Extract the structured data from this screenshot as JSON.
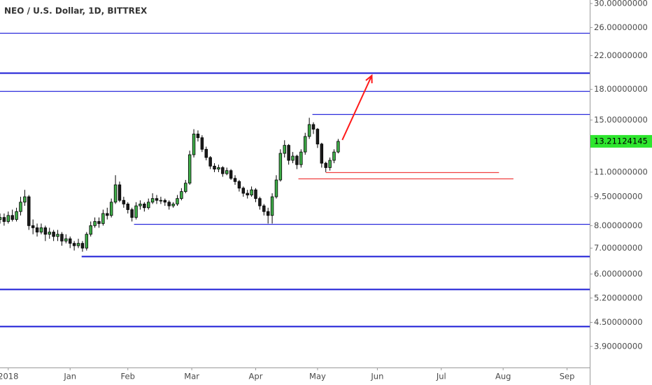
{
  "chart_data": {
    "type": "candlestick",
    "title": "NEO / U.S. Dollar, 1D, BITTREX",
    "log_scale": true,
    "grid": false,
    "up_color": "#3fae49",
    "down_color": "#1b1b1b",
    "wick_color": "#000000",
    "x": [
      -4,
      -2,
      0,
      2,
      4,
      6,
      8,
      10,
      12,
      14,
      16,
      18,
      20,
      22,
      24,
      26,
      28,
      30,
      32,
      34,
      36,
      38,
      40,
      42,
      44,
      46,
      48,
      50,
      52,
      54,
      56,
      58,
      60,
      62,
      64,
      66,
      68,
      70,
      72,
      74,
      76,
      78,
      80,
      82,
      84,
      86,
      88,
      90,
      92,
      94,
      96,
      98,
      100,
      102,
      104,
      106,
      108,
      110,
      112,
      114,
      116,
      118,
      120,
      122,
      124,
      126,
      128,
      130,
      132,
      134,
      136,
      138,
      140,
      142,
      144,
      146,
      148,
      150,
      152,
      154,
      156,
      158,
      160
    ],
    "open": [
      8.3,
      8.4,
      8.2,
      8.5,
      8.3,
      8.7,
      9.2,
      9.5,
      8.0,
      7.9,
      7.7,
      7.9,
      7.6,
      7.7,
      7.5,
      7.6,
      7.3,
      7.4,
      7.2,
      7.1,
      7.2,
      7.0,
      7.6,
      8.0,
      8.2,
      8.1,
      8.6,
      8.5,
      9.2,
      10.2,
      9.3,
      9.1,
      8.8,
      8.4,
      9.0,
      9.1,
      8.9,
      9.2,
      9.4,
      9.3,
      9.3,
      9.2,
      9.0,
      9.1,
      9.4,
      9.8,
      10.3,
      12.2,
      13.8,
      13.5,
      12.6,
      12.0,
      11.4,
      11.2,
      11.3,
      10.9,
      11.1,
      10.6,
      10.4,
      10.0,
      9.7,
      9.6,
      9.9,
      9.4,
      9.0,
      8.7,
      8.5,
      9.5,
      10.5,
      12.3,
      12.9,
      11.8,
      12.1,
      11.5,
      12.4,
      13.6,
      14.6,
      14.2,
      13.0,
      11.6,
      11.3,
      11.8,
      12.4
    ],
    "high": [
      8.6,
      8.6,
      8.7,
      8.8,
      8.9,
      9.5,
      9.9,
      9.6,
      8.3,
      8.1,
      8.1,
      8.0,
      7.9,
      7.8,
      7.8,
      7.7,
      7.6,
      7.5,
      7.3,
      7.4,
      7.3,
      7.7,
      8.2,
      8.4,
      8.4,
      8.8,
      8.9,
      9.4,
      10.8,
      10.4,
      9.5,
      9.2,
      8.9,
      9.2,
      9.3,
      9.2,
      9.4,
      9.7,
      9.6,
      9.5,
      9.4,
      9.3,
      9.2,
      9.6,
      10.0,
      10.5,
      12.5,
      14.2,
      14.1,
      13.7,
      12.8,
      12.1,
      11.6,
      11.5,
      11.4,
      11.3,
      11.2,
      10.8,
      10.5,
      10.1,
      9.9,
      10.1,
      10.0,
      9.5,
      9.1,
      8.9,
      9.7,
      10.8,
      12.6,
      13.3,
      13.0,
      12.4,
      12.2,
      12.6,
      13.9,
      15.2,
      14.8,
      14.3,
      13.1,
      11.7,
      12.0,
      12.6,
      13.4
    ],
    "low": [
      8.1,
      8.0,
      8.1,
      8.2,
      8.2,
      8.5,
      9.0,
      7.8,
      7.6,
      7.5,
      7.6,
      7.3,
      7.4,
      7.3,
      7.3,
      7.1,
      7.2,
      7.0,
      6.9,
      7.0,
      6.85,
      6.9,
      7.5,
      7.9,
      7.9,
      8.0,
      8.3,
      8.4,
      9.1,
      9.2,
      8.9,
      8.6,
      8.2,
      8.3,
      8.8,
      8.7,
      8.8,
      9.1,
      9.1,
      9.1,
      9.0,
      8.8,
      8.9,
      9.0,
      9.3,
      9.7,
      10.2,
      12.0,
      13.2,
      12.4,
      11.8,
      11.2,
      11.0,
      11.0,
      10.7,
      10.8,
      10.5,
      10.2,
      9.8,
      9.5,
      9.4,
      9.5,
      9.2,
      8.8,
      8.5,
      8.1,
      8.1,
      9.4,
      10.4,
      12.0,
      11.5,
      11.6,
      11.2,
      11.3,
      12.2,
      13.4,
      13.8,
      12.7,
      11.3,
      11.0,
      11.1,
      11.6,
      12.3
    ],
    "close": [
      8.4,
      8.2,
      8.5,
      8.3,
      8.7,
      9.2,
      9.5,
      8.0,
      7.9,
      7.7,
      7.9,
      7.6,
      7.7,
      7.5,
      7.6,
      7.3,
      7.4,
      7.2,
      7.1,
      7.2,
      7.0,
      7.6,
      8.0,
      8.2,
      8.1,
      8.6,
      8.5,
      9.2,
      10.2,
      9.3,
      9.1,
      8.8,
      8.4,
      9.0,
      9.1,
      8.9,
      9.2,
      9.4,
      9.3,
      9.3,
      9.2,
      9.0,
      9.1,
      9.4,
      9.8,
      10.3,
      12.2,
      13.8,
      13.5,
      12.6,
      12.0,
      11.4,
      11.2,
      11.3,
      10.9,
      11.1,
      10.6,
      10.4,
      10.0,
      9.7,
      9.6,
      9.9,
      9.4,
      9.0,
      8.7,
      8.5,
      9.5,
      10.5,
      12.3,
      12.9,
      11.8,
      12.1,
      11.5,
      12.4,
      13.6,
      14.6,
      14.2,
      13.0,
      11.6,
      11.3,
      11.8,
      12.4,
      13.21124145
    ],
    "last_price_color": "#2ee62e",
    "xlim": [
      -4,
      282
    ],
    "xticks": [
      {
        "value": 0,
        "label": "2018"
      },
      {
        "value": 30,
        "label": "Jan"
      },
      {
        "value": 58,
        "label": "Feb"
      },
      {
        "value": 89,
        "label": "Mar"
      },
      {
        "value": 120,
        "label": "Apr"
      },
      {
        "value": 150,
        "label": "May"
      },
      {
        "value": 179,
        "label": "Jun"
      },
      {
        "value": 210,
        "label": "Jul"
      },
      {
        "value": 240,
        "label": "Aug"
      },
      {
        "value": 271,
        "label": "Sep"
      }
    ],
    "ylim": [
      3.44,
      30.63
    ],
    "yticks": [
      {
        "value": 30,
        "label": "30.00000000"
      },
      {
        "value": 26,
        "label": "26.00000000"
      },
      {
        "value": 22,
        "label": "22.00000000"
      },
      {
        "value": 18,
        "label": "18.00000000"
      },
      {
        "value": 15,
        "label": "15.00000000"
      },
      {
        "value": 11,
        "label": "11.00000000"
      },
      {
        "value": 9.5,
        "label": "9.50000000"
      },
      {
        "value": 8,
        "label": "8.00000000"
      },
      {
        "value": 7,
        "label": "7.00000000"
      },
      {
        "value": 6,
        "label": "6.00000000"
      },
      {
        "value": 5.2,
        "label": "5.20000000"
      },
      {
        "value": 4.5,
        "label": "4.50000000"
      },
      {
        "value": 3.9,
        "label": "3.90000000"
      }
    ],
    "levels": [
      {
        "value": 25.19,
        "color": "#2b2bdc",
        "bold": false
      },
      {
        "value": 19.87,
        "color": "#1a1ad6",
        "bold": true
      },
      {
        "value": 17.83,
        "color": "#2b2bdc",
        "bold": false
      },
      {
        "value": 15.54,
        "color": "#2b2bdc",
        "bold": false,
        "from": 147.5
      },
      {
        "value": 8.08,
        "color": "#2b2bdc",
        "bold": false,
        "from": 61
      },
      {
        "value": 6.67,
        "color": "#1a1ad6",
        "bold": true,
        "from": 35.6
      },
      {
        "value": 5.49,
        "color": "#1a1ad6",
        "bold": true
      },
      {
        "value": 4.4,
        "color": "#1a1ad6",
        "bold": true
      },
      {
        "value": 11.0,
        "color": "#f04040",
        "bold": false,
        "from": 154,
        "to": 238
      },
      {
        "value": 10.6,
        "color": "#f04040",
        "bold": false,
        "from": 140.7,
        "to": 245
      }
    ],
    "arrow": {
      "from": [
        162,
        13.32
      ],
      "to": [
        176.3,
        19.54
      ],
      "color": "#ff1a1a"
    }
  }
}
